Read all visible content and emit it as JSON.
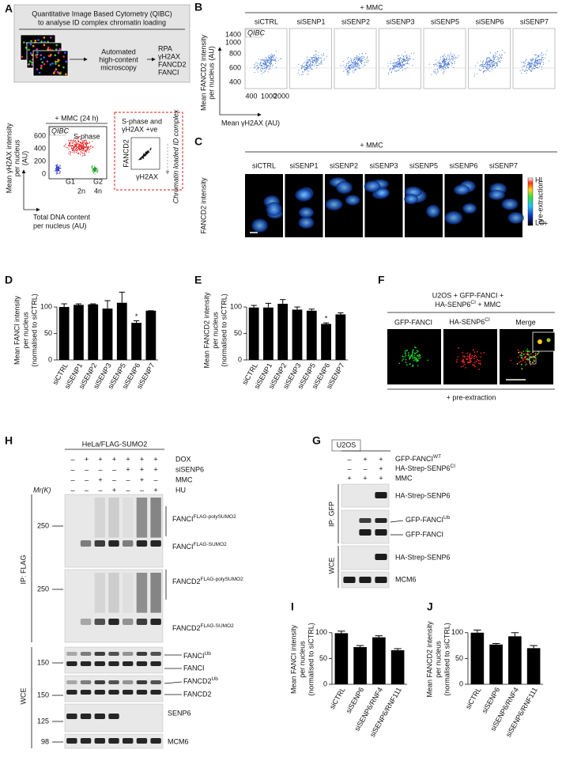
{
  "A": {
    "letter": "A",
    "box_title": [
      "Quantitative Image Based Cytometry (QIBC)",
      "to analyse ID complex chromatin loading"
    ],
    "pipeline": [
      "Automated",
      "high-content",
      "microscopy"
    ],
    "markers": [
      "RPA",
      "γH2AX",
      "FANCD2",
      "FANCI"
    ],
    "condition": "+ MMC (24 h)",
    "plot_tag": "QIBC",
    "phases": [
      "S-phase",
      "G1",
      "G2"
    ],
    "yticks": [
      600,
      400,
      200,
      0
    ],
    "xticks": [
      "2n",
      "4n"
    ],
    "ylabel": [
      "Mean γH2AX intensity",
      "per nucleus",
      "(AU)"
    ],
    "xlabel": [
      "Total DNA content",
      "per nucleus (AU)"
    ],
    "gate": [
      "S-phase and",
      "γH2AX +ve"
    ],
    "inset_y": "FANCD2",
    "inset_x": "γH2AX",
    "inset_note": "Chromatin loaded ID complex"
  },
  "B": {
    "letter": "B",
    "condition": "+ MMC",
    "columns": [
      "siCTRL",
      "siSENP1",
      "siSENP2",
      "siSENP3",
      "siSENP5",
      "siSENP6",
      "siSENP7"
    ],
    "plot_tag": "QIBC",
    "yticks": [
      1400,
      1000,
      800,
      600,
      400
    ],
    "xticks": [
      400,
      1000,
      2000
    ],
    "ylabel": [
      "Mean FANCD2 intensity",
      "per nucleus (AU)"
    ],
    "xlabel": "Mean γH2AX (AU)"
  },
  "C": {
    "letter": "C",
    "condition": "+ MMC",
    "columns": [
      "siCTRL",
      "siSENP1",
      "siSENP2",
      "siSENP3",
      "siSENP5",
      "siSENP6",
      "siSENP7"
    ],
    "ylabel": "FANCD2 intensity",
    "scale": [
      "HI",
      "LO"
    ],
    "scale_note": "pre-extraction",
    "scale_sign": "+"
  },
  "D": {
    "letter": "D",
    "chart_data": {
      "type": "bar",
      "ylabel": [
        "Mean FANCI intensity",
        "per nucleus",
        "(normalised to siCTRL)"
      ],
      "categories": [
        "siCTRL",
        "siSENP1",
        "siSENP2",
        "siSENP3",
        "siSENP5",
        "siSENP6",
        "siSENP7"
      ],
      "values": [
        100,
        104,
        105,
        97,
        108,
        70,
        93
      ],
      "errors": [
        6,
        2,
        1,
        15,
        20,
        4,
        0
      ],
      "color": "#000000",
      "ylim": [
        0,
        130
      ],
      "yticks": [
        0,
        50,
        100
      ],
      "annotation": {
        "text": "*",
        "category": "siSENP6"
      }
    }
  },
  "E": {
    "letter": "E",
    "chart_data": {
      "type": "bar",
      "ylabel": [
        "Mean FANCD2 intensity",
        "per nucleus",
        "(normalised to siCTRL)"
      ],
      "categories": [
        "siCTRL",
        "siSENP1",
        "siSENP2",
        "siSENP3",
        "siSENP5",
        "siSENP6",
        "siSENP7"
      ],
      "values": [
        99,
        99,
        106,
        95,
        93,
        68,
        86
      ],
      "errors": [
        4,
        8,
        8,
        5,
        3,
        2,
        3
      ],
      "color": "#000000",
      "ylim": [
        0,
        130
      ],
      "yticks": [
        0,
        50,
        100
      ],
      "annotation": {
        "text": "*",
        "category": "siSENP6"
      }
    }
  },
  "F": {
    "letter": "F",
    "title": [
      "U2OS + GFP-FANCI +",
      {
        "text": "HA-SENP6",
        "sup": "CI",
        "after": " + MMC"
      }
    ],
    "channels": [
      "GFP-FANCI",
      {
        "text": "HA-SENP6",
        "sup": "CI"
      },
      "Merge"
    ],
    "note": "+ pre-extraction"
  },
  "H": {
    "letter": "H",
    "header": "HeLa/FLAG-SUMO2",
    "conditions": [
      {
        "label": "DOX",
        "signs": [
          "–",
          "+",
          "+",
          "+",
          "+",
          "+",
          "+"
        ]
      },
      {
        "label": "siSENP6",
        "signs": [
          "–",
          "–",
          "–",
          "–",
          "+",
          "+",
          "+"
        ]
      },
      {
        "label": "MMC",
        "signs": [
          "–",
          "–",
          "+",
          "–",
          "–",
          "+",
          "–"
        ]
      },
      {
        "label": "HU",
        "signs": [
          "–",
          "–",
          "–",
          "+",
          "–",
          "–",
          "+"
        ]
      }
    ],
    "mr": "Mr(K)",
    "markers": [
      250,
      250,
      150,
      150,
      125,
      98
    ],
    "bands": [
      {
        "text": "FANCI",
        "sup": "FLAG-polySUMO2"
      },
      {
        "text": "FANCI",
        "sup": "FLAG-SUMO2"
      },
      {
        "text": "FANCD2",
        "sup": "FLAG-polySUMO2"
      },
      {
        "text": "FANCD2",
        "sup": "FLAG-SUMO2"
      },
      {
        "text": "FANCI",
        "sup": "Ub"
      },
      "FANCI",
      {
        "text": "FANCD2",
        "sup": "Ub"
      },
      "FANCD2",
      "SENP6",
      "MCM6"
    ],
    "sections": [
      "IP: FLAG",
      "WCE"
    ]
  },
  "G": {
    "letter": "G",
    "header": "U2OS",
    "conditions": [
      {
        "label": {
          "text": "GFP-FANCI",
          "sup": "WT"
        },
        "signs": [
          "–",
          "+",
          "+"
        ]
      },
      {
        "label": {
          "text": "HA-Strep-SENP6",
          "sup": "CI"
        },
        "signs": [
          "–",
          "–",
          "+"
        ]
      },
      {
        "label": "MMC",
        "signs": [
          "+",
          "+",
          "+"
        ]
      }
    ],
    "bands": [
      "HA-Strep-SENP6",
      {
        "text": "GFP-FANCI",
        "sup": "Ub"
      },
      "GFP-FANCI",
      "HA-Strep-SENP6",
      "MCM6"
    ],
    "sections": [
      "IP: GFP",
      "WCE"
    ]
  },
  "I": {
    "letter": "I",
    "chart_data": {
      "type": "bar",
      "ylabel": [
        "Mean FANCI intensity",
        "per nucleus",
        "(normalised to siCTRL)"
      ],
      "categories": [
        "siCTRL",
        "siSENP6",
        "siSENP6/RNF4",
        "siSENP6/RNF111"
      ],
      "values": [
        99,
        72,
        91,
        66
      ],
      "errors": [
        4,
        3,
        3,
        3
      ],
      "color": "#000000",
      "ylim": [
        0,
        115
      ],
      "yticks": [
        0,
        50,
        100
      ]
    }
  },
  "J": {
    "letter": "J",
    "chart_data": {
      "type": "bar",
      "ylabel": [
        "Mean FANCD2 intensity",
        "per nucleus",
        "(normalised to siCTRL)"
      ],
      "categories": [
        "siCTRL",
        "siSENP6",
        "siSENP6/RNF4",
        "siSENP6/RNF111"
      ],
      "values": [
        100,
        77,
        93,
        70
      ],
      "errors": [
        5,
        2,
        7,
        5
      ],
      "color": "#000000",
      "ylim": [
        0,
        115
      ],
      "yticks": [
        0,
        50,
        100
      ]
    }
  }
}
